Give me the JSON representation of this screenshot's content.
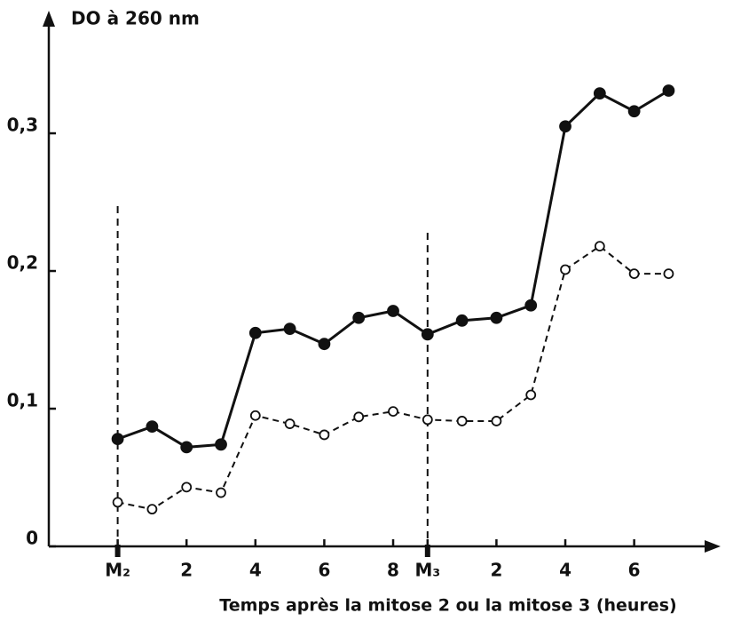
{
  "chart_data": {
    "type": "line",
    "title": "DO à 260 nm",
    "x_label": "Temps après la mitose 2 ou la mitose 3 (heures)",
    "x": [
      0,
      1,
      2,
      3,
      4,
      5,
      6,
      7,
      8,
      9,
      10,
      11,
      12,
      13,
      14,
      15,
      16
    ],
    "series": [
      {
        "marker": "filled",
        "dash": false,
        "color": "#111111",
        "values": [
          0.078,
          0.087,
          0.072,
          0.074,
          0.155,
          0.158,
          0.147,
          0.166,
          0.171,
          0.154,
          0.164,
          0.166,
          0.175,
          0.305,
          0.329,
          0.316,
          0.331
        ]
      },
      {
        "marker": "open",
        "dash": true,
        "color": "#111111",
        "values": [
          0.032,
          0.027,
          0.043,
          0.039,
          0.095,
          0.089,
          0.081,
          0.094,
          0.098,
          0.092,
          0.091,
          0.091,
          0.11,
          0.201,
          0.218,
          0.198,
          0.198
        ]
      }
    ],
    "xlim": [
      -2,
      17.2
    ],
    "ylim": [
      0,
      0.371
    ],
    "xticks": [
      {
        "value": 0,
        "label": "M₂"
      },
      2,
      4,
      6,
      8,
      {
        "value": 9,
        "label": "M₃"
      },
      {
        "value": 11,
        "label": "2"
      },
      {
        "value": 13,
        "label": "4"
      },
      {
        "value": 15,
        "label": "6"
      }
    ],
    "yticks": [
      0,
      {
        "value": 0.1,
        "label": "0,1"
      },
      {
        "value": 0.2,
        "label": "0,2"
      },
      {
        "value": 0.3,
        "label": "0,3"
      }
    ],
    "mitosis_lines": [
      0,
      9
    ],
    "grid": false
  }
}
